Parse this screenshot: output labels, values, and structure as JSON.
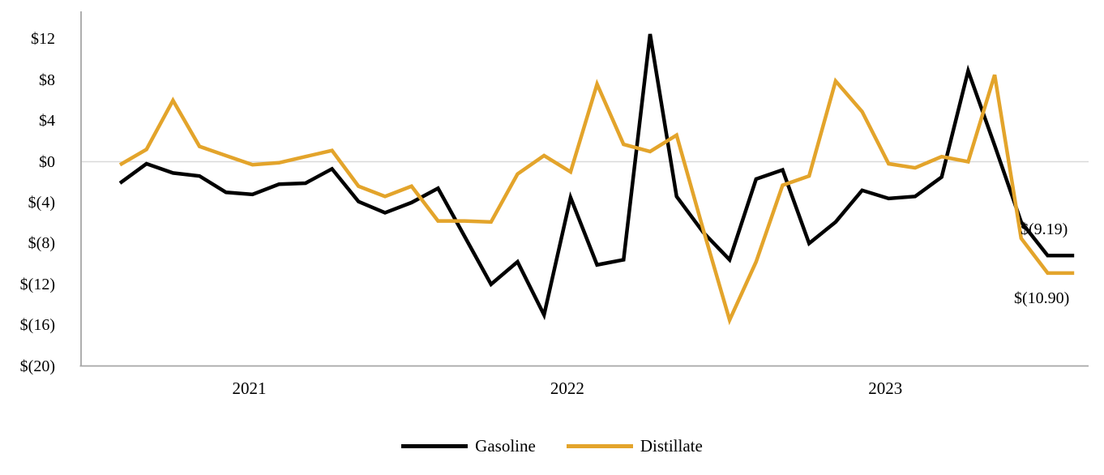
{
  "chart_data": {
    "type": "line",
    "title": "",
    "xlabel": "",
    "ylabel": "",
    "ylim": [
      -20,
      12
    ],
    "y_ticks": [
      {
        "label": "$12",
        "value": 12
      },
      {
        "label": "$8",
        "value": 8
      },
      {
        "label": "$4",
        "value": 4
      },
      {
        "label": "$0",
        "value": 0
      },
      {
        "label": "$(4)",
        "value": -4
      },
      {
        "label": "$(8)",
        "value": -8
      },
      {
        "label": "$(12)",
        "value": -12
      },
      {
        "label": "$(16)",
        "value": -16
      },
      {
        "label": "$(20)",
        "value": -20
      }
    ],
    "x_tick_labels": [
      {
        "label": "2021",
        "index": 5
      },
      {
        "label": "2022",
        "index": 17
      },
      {
        "label": "2023",
        "index": 29
      }
    ],
    "grid": "zero-line-only",
    "legend_position": "bottom-center",
    "series": [
      {
        "name": "Gasoline",
        "color": "#000000",
        "values": [
          -2.1,
          -0.2,
          -1.1,
          -1.4,
          -3.0,
          -3.2,
          -2.2,
          -2.1,
          -0.7,
          -3.9,
          -5.0,
          -4.0,
          -2.6,
          -7.3,
          -12.0,
          -9.8,
          -15.0,
          -3.5,
          -10.1,
          -9.6,
          12.5,
          -3.4,
          -6.9,
          -9.6,
          -1.7,
          -0.8,
          -8.0,
          -5.9,
          -2.8,
          -3.6,
          -3.4,
          -1.5,
          8.9,
          1.6,
          -5.9,
          -9.19,
          -9.19
        ]
      },
      {
        "name": "Distillate",
        "color": "#E3A42B",
        "values": [
          -0.3,
          1.2,
          6.0,
          1.5,
          0.6,
          -0.3,
          -0.1,
          0.5,
          1.1,
          -2.4,
          -3.4,
          -2.4,
          -5.8,
          -5.8,
          -5.9,
          -1.2,
          0.6,
          -1.0,
          7.6,
          1.7,
          1.0,
          2.6,
          -6.6,
          -15.5,
          -9.8,
          -2.3,
          -1.4,
          7.9,
          4.9,
          -0.2,
          -0.6,
          0.5,
          0.0,
          8.5,
          -7.5,
          -10.9,
          -10.9
        ]
      }
    ],
    "annotations": [
      {
        "text": "$(9.19)",
        "series": "Gasoline"
      },
      {
        "text": "$(10.90)",
        "series": "Distillate"
      }
    ]
  },
  "colors": {
    "gridline": "#D9D9D9",
    "axis": "#A6A6A6",
    "background": "#FFFFFF"
  }
}
